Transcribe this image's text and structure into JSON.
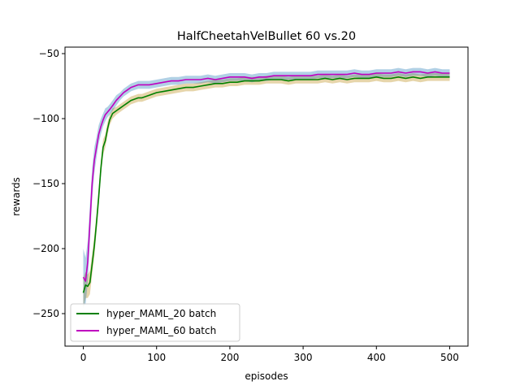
{
  "chart_data": {
    "type": "line",
    "title": "HalfCheetahVelBullet 60 vs.20",
    "xlabel": "episodes",
    "ylabel": "rewards",
    "xlim": [
      -25,
      525
    ],
    "ylim": [
      -275,
      -45
    ],
    "xticks": [
      0,
      100,
      200,
      300,
      400,
      500
    ],
    "yticks": [
      -250,
      -200,
      -150,
      -100,
      -50
    ],
    "grid": false,
    "legend_position": "lower-left",
    "series": [
      {
        "name": "hyper_MAML_20 batch",
        "color": "#008000",
        "band_color": "#b8860b",
        "x": [
          0,
          3,
          6,
          9,
          12,
          15,
          18,
          21,
          24,
          27,
          30,
          33,
          36,
          40,
          45,
          50,
          55,
          60,
          65,
          70,
          75,
          80,
          90,
          100,
          110,
          120,
          130,
          140,
          150,
          160,
          170,
          180,
          190,
          200,
          210,
          220,
          230,
          240,
          250,
          260,
          270,
          280,
          290,
          300,
          310,
          320,
          330,
          340,
          350,
          360,
          370,
          380,
          390,
          400,
          410,
          420,
          430,
          440,
          450,
          460,
          470,
          480,
          490,
          500
        ],
        "y": [
          -234,
          -228,
          -229,
          -226,
          -212,
          -198,
          -180,
          -160,
          -138,
          -122,
          -117,
          -108,
          -101,
          -96,
          -94,
          -92,
          -90,
          -88,
          -86,
          -85,
          -84,
          -84,
          -82,
          -80,
          -79,
          -78,
          -77,
          -76,
          -76,
          -75,
          -74,
          -73,
          -73,
          -72,
          -72,
          -71,
          -71,
          -71,
          -70,
          -70,
          -70,
          -71,
          -70,
          -70,
          -70,
          -70,
          -69,
          -70,
          -69,
          -70,
          -69,
          -69,
          -69,
          -68,
          -69,
          -69,
          -68,
          -69,
          -68,
          -69,
          -68,
          -68,
          -68,
          -68
        ],
        "band": [
          12,
          10,
          9,
          9,
          8,
          8,
          7,
          7,
          6,
          6,
          5,
          5,
          4,
          4,
          3,
          3,
          3,
          3,
          3,
          3,
          3,
          3,
          3,
          3,
          3,
          3,
          3,
          3,
          3,
          3,
          3,
          3,
          3,
          3,
          3,
          3,
          3,
          3,
          3,
          3,
          3,
          3,
          3,
          3,
          3,
          3,
          3,
          3,
          3,
          3,
          3,
          3,
          3,
          3,
          3,
          3,
          3,
          3,
          3,
          3,
          3,
          3,
          3,
          3
        ]
      },
      {
        "name": "hyper_MAML_60 batch",
        "color": "#bf00bf",
        "band_color": "#1f77b4",
        "x": [
          0,
          3,
          6,
          9,
          12,
          15,
          18,
          21,
          24,
          27,
          30,
          33,
          36,
          40,
          45,
          50,
          55,
          60,
          65,
          70,
          75,
          80,
          90,
          100,
          110,
          120,
          130,
          140,
          150,
          160,
          170,
          180,
          190,
          200,
          210,
          220,
          230,
          240,
          250,
          260,
          270,
          280,
          290,
          300,
          310,
          320,
          330,
          340,
          350,
          360,
          370,
          380,
          390,
          400,
          410,
          420,
          430,
          440,
          450,
          460,
          470,
          480,
          490,
          500
        ],
        "y": [
          -222,
          -225,
          -210,
          -180,
          -150,
          -132,
          -122,
          -112,
          -106,
          -101,
          -97,
          -95,
          -93,
          -90,
          -86,
          -83,
          -80,
          -78,
          -76,
          -75,
          -74,
          -74,
          -74,
          -73,
          -72,
          -71,
          -71,
          -70,
          -70,
          -70,
          -69,
          -70,
          -69,
          -68,
          -68,
          -68,
          -69,
          -68,
          -68,
          -67,
          -67,
          -67,
          -67,
          -67,
          -67,
          -66,
          -66,
          -66,
          -66,
          -66,
          -65,
          -66,
          -66,
          -65,
          -65,
          -65,
          -64,
          -65,
          -64,
          -64,
          -65,
          -64,
          -65,
          -65
        ],
        "band": [
          22,
          18,
          16,
          14,
          12,
          10,
          8,
          7,
          6,
          5,
          5,
          4,
          4,
          4,
          4,
          3,
          3,
          3,
          3,
          3,
          3,
          3,
          3,
          3,
          3,
          3,
          3,
          3,
          3,
          3,
          3,
          3,
          3,
          3,
          3,
          3,
          3,
          3,
          3,
          3,
          3,
          3,
          3,
          3,
          3,
          3,
          3,
          3,
          3,
          3,
          3,
          3,
          3,
          3,
          3,
          3,
          3,
          3,
          3,
          3,
          3,
          3,
          3,
          3
        ]
      }
    ]
  }
}
